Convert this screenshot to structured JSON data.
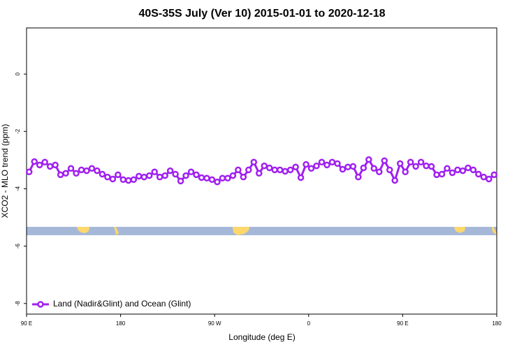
{
  "chart_data": {
    "type": "line",
    "title": "40S-35S July (Ver 10)   2015-01-01 to 2020-12-18",
    "x_label": "Longitude (deg E)",
    "y_label": "XCO2 - MLO trend (ppm)",
    "x": [
      92.5,
      97.5,
      102.5,
      107.5,
      112.5,
      117.5,
      122.5,
      127.5,
      132.5,
      137.5,
      142.5,
      147.5,
      152.5,
      157.5,
      162.5,
      167.5,
      172.5,
      177.5,
      182.5,
      187.5,
      192.5,
      197.5,
      202.5,
      207.5,
      212.5,
      217.5,
      222.5,
      227.5,
      232.5,
      237.5,
      242.5,
      247.5,
      252.5,
      257.5,
      262.5,
      267.5,
      272.5,
      277.5,
      282.5,
      287.5,
      292.5,
      297.5,
      302.5,
      307.5,
      312.5,
      317.5,
      322.5,
      327.5,
      332.5,
      337.5,
      342.5,
      347.5,
      352.5,
      357.5,
      362.5,
      367.5,
      372.5,
      377.5,
      382.5,
      387.5,
      392.5,
      397.5,
      402.5,
      407.5,
      412.5,
      417.5,
      422.5,
      427.5,
      432.5,
      437.5,
      442.5,
      447.5,
      452.5,
      457.5,
      462.5,
      467.5,
      472.5,
      477.5,
      482.5,
      487.5,
      492.5,
      497.5,
      502.5,
      507.5,
      512.5,
      517.5,
      522.5,
      527.5,
      532.5,
      537.5
    ],
    "series": [
      {
        "name": "Land (Nadir&Glint) and Ocean (Glint)",
        "color": "#a020f0",
        "values": [
          -3.41,
          -3.05,
          -3.17,
          -3.07,
          -3.22,
          -3.17,
          -3.51,
          -3.46,
          -3.29,
          -3.46,
          -3.34,
          -3.37,
          -3.29,
          -3.37,
          -3.49,
          -3.59,
          -3.66,
          -3.51,
          -3.68,
          -3.71,
          -3.68,
          -3.56,
          -3.59,
          -3.54,
          -3.41,
          -3.59,
          -3.54,
          -3.37,
          -3.49,
          -3.73,
          -3.54,
          -3.41,
          -3.51,
          -3.61,
          -3.63,
          -3.68,
          -3.76,
          -3.63,
          -3.63,
          -3.54,
          -3.34,
          -3.59,
          -3.34,
          -3.07,
          -3.46,
          -3.2,
          -3.27,
          -3.34,
          -3.34,
          -3.39,
          -3.34,
          -3.24,
          -3.61,
          -3.15,
          -3.29,
          -3.2,
          -3.07,
          -3.17,
          -3.07,
          -3.12,
          -3.32,
          -3.24,
          -3.22,
          -3.59,
          -3.27,
          -2.98,
          -3.29,
          -3.41,
          -3.02,
          -3.34,
          -3.71,
          -3.12,
          -3.41,
          -3.07,
          -3.22,
          -3.07,
          -3.2,
          -3.22,
          -3.51,
          -3.49,
          -3.29,
          -3.44,
          -3.34,
          -3.37,
          -3.27,
          -3.34,
          -3.49,
          -3.59,
          -3.66,
          -3.51
        ]
      }
    ],
    "xlim": [
      90,
      540
    ],
    "xticks": [
      {
        "value": 90,
        "label": "90 E"
      },
      180,
      {
        "value": 270,
        "label": "90 W"
      },
      {
        "value": 360,
        "label": "0"
      },
      {
        "value": 450,
        "label": "90 E"
      },
      {
        "value": 540,
        "label": "180"
      }
    ],
    "ylim": [
      -8.37,
      1.61
    ],
    "yticks": [
      0,
      -2,
      -4,
      -6,
      -8
    ],
    "legend": "bottom-left"
  }
}
